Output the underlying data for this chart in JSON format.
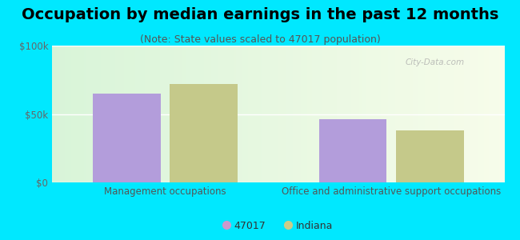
{
  "title": "Occupation by median earnings in the past 12 months",
  "subtitle": "(Note: State values scaled to 47017 population)",
  "categories": [
    "Management occupations",
    "Office and administrative support occupations"
  ],
  "values_47017": [
    65000,
    46000
  ],
  "values_indiana": [
    72000,
    38000
  ],
  "bar_color_47017": "#b39ddb",
  "bar_color_indiana": "#c5c98a",
  "legend_labels": [
    "47017",
    "Indiana"
  ],
  "legend_color_47017": "#cc99cc",
  "legend_color_indiana": "#cccc88",
  "ylim": [
    0,
    100000
  ],
  "yticks": [
    0,
    50000,
    100000
  ],
  "ytick_labels": [
    "$0",
    "$50k",
    "$100k"
  ],
  "background_color": "#00e8ff",
  "watermark": "City-Data.com",
  "bar_width": 0.6,
  "group_centers": [
    1.0,
    3.0
  ],
  "title_fontsize": 14,
  "subtitle_fontsize": 9,
  "tick_fontsize": 8.5,
  "xlabel_fontsize": 8.5
}
